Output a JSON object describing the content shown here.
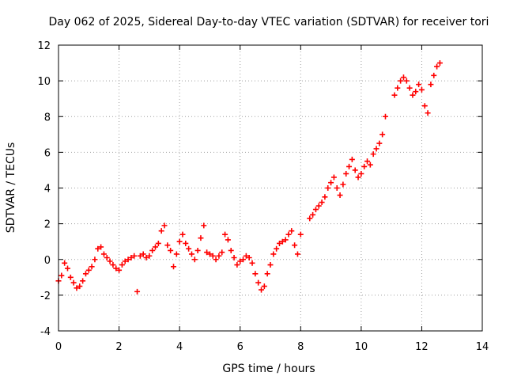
{
  "chart_data": {
    "type": "scatter",
    "title": "Day 062 of 2025, Sidereal Day-to-day VTEC variation (SDTVAR) for receiver tori",
    "xlabel": "GPS time / hours",
    "ylabel": "SDTVAR / TECUs",
    "xlim": [
      0,
      14
    ],
    "ylim": [
      -4,
      12
    ],
    "xticks": [
      "0",
      "2",
      "4",
      "6",
      "8",
      "10",
      "12",
      "14"
    ],
    "yticks": [
      "-4",
      "-2",
      "0",
      "2",
      "4",
      "6",
      "8",
      "10",
      "12"
    ],
    "xtick_values": [
      0,
      2,
      4,
      6,
      8,
      10,
      12,
      14
    ],
    "ytick_values": [
      -4,
      -2,
      0,
      2,
      4,
      6,
      8,
      10,
      12
    ],
    "grid": true,
    "marker": "+",
    "color": "#ff0000",
    "series": [
      {
        "name": "SDTVAR",
        "x": [
          0.0,
          0.1,
          0.2,
          0.3,
          0.4,
          0.5,
          0.6,
          0.7,
          0.8,
          0.9,
          1.0,
          1.1,
          1.2,
          1.3,
          1.4,
          1.5,
          1.6,
          1.7,
          1.8,
          1.9,
          2.0,
          2.1,
          2.2,
          2.3,
          2.4,
          2.5,
          2.6,
          2.7,
          2.8,
          2.9,
          3.0,
          3.1,
          3.2,
          3.3,
          3.4,
          3.5,
          3.6,
          3.7,
          3.8,
          3.9,
          4.0,
          4.1,
          4.2,
          4.3,
          4.4,
          4.5,
          4.6,
          4.7,
          4.8,
          4.9,
          5.0,
          5.1,
          5.2,
          5.3,
          5.4,
          5.5,
          5.6,
          5.7,
          5.8,
          5.9,
          6.0,
          6.1,
          6.2,
          6.3,
          6.4,
          6.5,
          6.6,
          6.7,
          6.8,
          6.9,
          7.0,
          7.1,
          7.2,
          7.3,
          7.4,
          7.5,
          7.6,
          7.7,
          7.8,
          7.9,
          8.0,
          8.3,
          8.4,
          8.5,
          8.6,
          8.7,
          8.8,
          8.9,
          9.0,
          9.1,
          9.2,
          9.3,
          9.4,
          9.5,
          9.6,
          9.7,
          9.8,
          9.9,
          10.0,
          10.1,
          10.2,
          10.3,
          10.4,
          10.5,
          10.6,
          10.7,
          10.8,
          11.1,
          11.2,
          11.3,
          11.4,
          11.5,
          11.6,
          11.7,
          11.8,
          11.9,
          12.0,
          12.1,
          12.2,
          12.3,
          12.4,
          12.5,
          12.6
        ],
        "y": [
          -1.2,
          -0.9,
          -0.2,
          -0.5,
          -1.0,
          -1.3,
          -1.6,
          -1.5,
          -1.2,
          -0.8,
          -0.6,
          -0.4,
          0.0,
          0.6,
          0.7,
          0.3,
          0.1,
          -0.1,
          -0.3,
          -0.5,
          -0.6,
          -0.3,
          -0.1,
          0.0,
          0.1,
          0.2,
          -1.8,
          0.2,
          0.3,
          0.1,
          0.2,
          0.5,
          0.7,
          0.9,
          1.6,
          1.9,
          0.8,
          0.5,
          -0.4,
          0.3,
          1.0,
          1.4,
          0.9,
          0.6,
          0.3,
          0.0,
          0.5,
          1.2,
          1.9,
          0.4,
          0.3,
          0.2,
          0.0,
          0.2,
          0.4,
          1.4,
          1.1,
          0.5,
          0.1,
          -0.3,
          -0.1,
          0.0,
          0.2,
          0.1,
          -0.2,
          -0.8,
          -1.3,
          -1.7,
          -1.5,
          -0.8,
          -0.3,
          0.3,
          0.6,
          0.9,
          1.0,
          1.1,
          1.4,
          1.6,
          0.8,
          0.3,
          1.4,
          2.3,
          2.5,
          2.8,
          3.0,
          3.2,
          3.5,
          4.0,
          4.3,
          4.6,
          4.0,
          3.6,
          4.2,
          4.8,
          5.2,
          5.6,
          5.0,
          4.6,
          4.8,
          5.2,
          5.5,
          5.3,
          5.9,
          6.2,
          6.5,
          7.0,
          8.0,
          9.2,
          9.6,
          10.0,
          10.2,
          10.0,
          9.6,
          9.2,
          9.4,
          9.8,
          9.5,
          8.6,
          8.2,
          9.8,
          10.3,
          10.8,
          11.0
        ]
      }
    ]
  }
}
